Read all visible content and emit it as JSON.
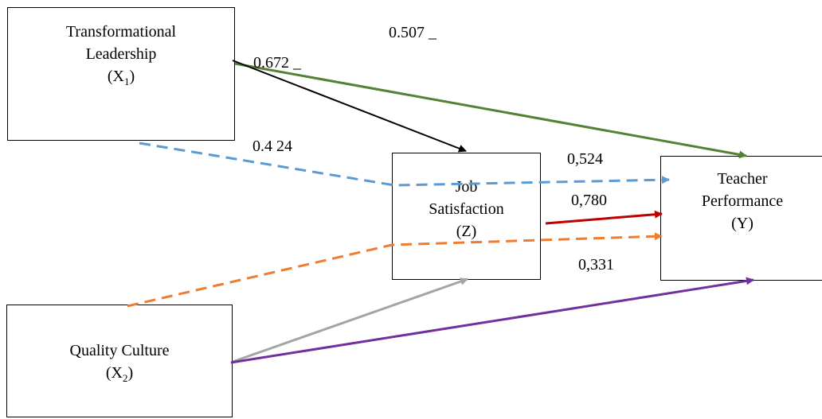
{
  "nodes": {
    "x1": {
      "line1": "Transformational",
      "line2": "Leadership",
      "line3": "(X1)"
    },
    "z": {
      "line1": "Job",
      "line2": "Satisfaction",
      "line3": "(Z)"
    },
    "y": {
      "line1": "Teacher",
      "line2": "Performance",
      "line3": "(Y)"
    },
    "x2": {
      "line1": "Quality Culture",
      "line2": "(X2)"
    }
  },
  "paths": {
    "x1_to_y": "0.507 _",
    "x1_to_z": "0.672 _",
    "x1_via_z_to_y": "0.4 24",
    "z_to_y_label_top": "0,524",
    "z_to_y": "0,780",
    "x2_via_z_to_y": "0,331"
  },
  "colors": {
    "x1_to_y": "#538135",
    "x1_to_z": "#000000",
    "x1_via_z_to_y": "#5b9bd5",
    "z_to_y": "#c00000",
    "x2_via_z_to_y": "#ed7d31",
    "x2_to_z": "#a5a5a5",
    "x2_to_y": "#7030a0"
  }
}
